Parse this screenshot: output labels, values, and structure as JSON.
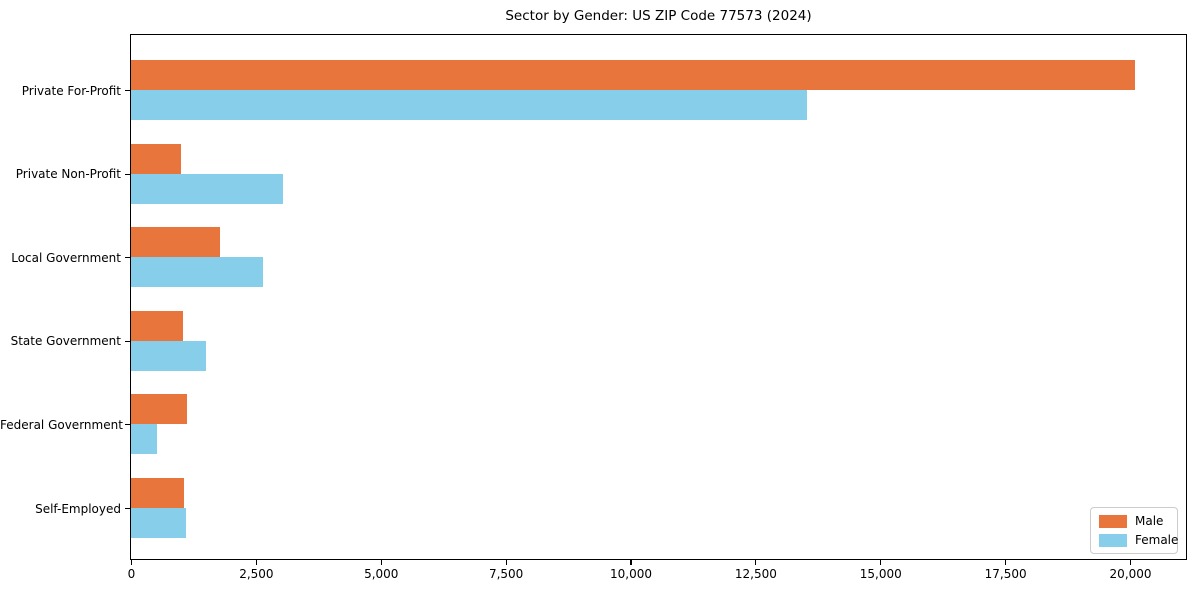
{
  "figure": {
    "background": "#ffffff"
  },
  "chart_data": {
    "type": "bar",
    "orientation": "horizontal",
    "title": "Sector by Gender: US ZIP Code 77573 (2024)",
    "categories": [
      "Private For-Profit",
      "Private Non-Profit",
      "Local Government",
      "State Government",
      "Federal Government",
      "Self-Employed"
    ],
    "series": [
      {
        "name": "Male",
        "color": "#e8763c",
        "values": [
          20100,
          1000,
          1780,
          1040,
          1120,
          1060
        ]
      },
      {
        "name": "Female",
        "color": "#87ceeb",
        "values": [
          13530,
          3040,
          2640,
          1500,
          520,
          1100
        ]
      }
    ],
    "xlabel": "",
    "ylabel": "",
    "xlim": [
      0,
      21100
    ],
    "xticks": [
      0,
      2500,
      5000,
      7500,
      10000,
      12500,
      15000,
      17500,
      20000
    ],
    "xtick_labels": [
      "0",
      "2,500",
      "5,000",
      "7,500",
      "10,000",
      "12,500",
      "15,000",
      "17,500",
      "20,000"
    ],
    "grid": false,
    "legend_position": "lower right",
    "bar_arrangement": "male-above-female-below",
    "axis_color": "#000000",
    "text_color": "#000000"
  }
}
